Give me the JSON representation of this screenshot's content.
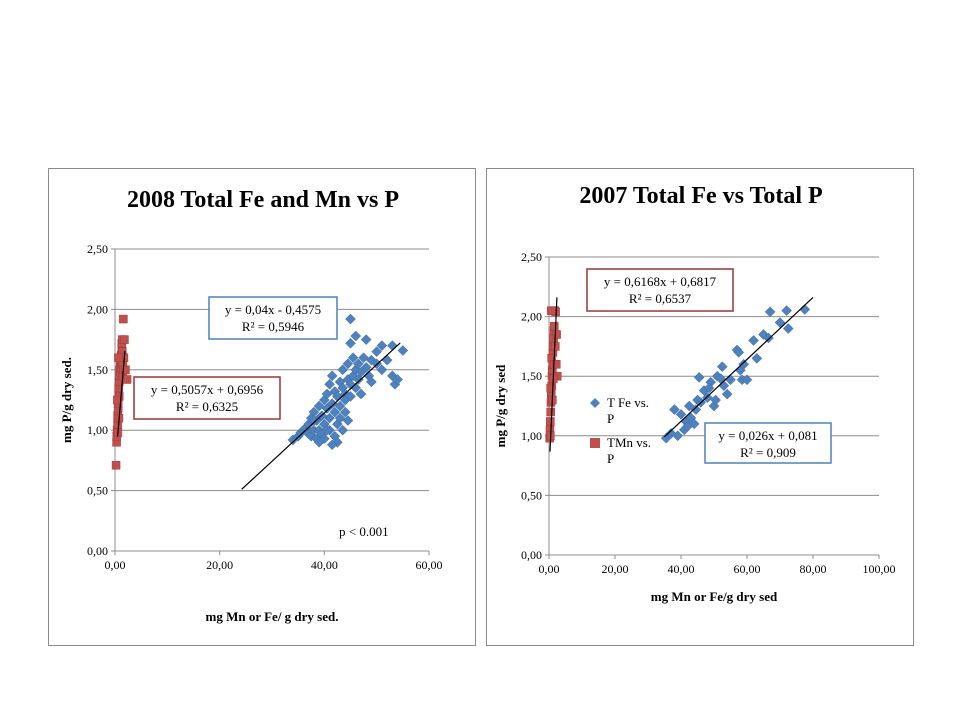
{
  "chart_data": [
    {
      "type": "scatter",
      "title": "2008 Total Fe and Mn vs P",
      "xlabel": "mg Mn or Fe/ g dry sed.",
      "ylabel": "mg P/g dry sed.",
      "xlim": [
        0,
        60
      ],
      "ylim": [
        0,
        2.5
      ],
      "xticks": [
        "0,00",
        "20,00",
        "40,00",
        "60,00"
      ],
      "yticks": [
        "0,00",
        "0,50",
        "1,00",
        "1,50",
        "2,00",
        "2,50"
      ],
      "grid": "horizontal",
      "legend": null,
      "series": [
        {
          "color": "#4f81bd",
          "marker": "diamond",
          "trend": {
            "slope": 0.04,
            "intercept": -0.4575,
            "x_range": [
              24.2,
              54.5
            ],
            "color": "#000000"
          },
          "points": [
            [
              34.0,
              0.92
            ],
            [
              35.0,
              0.95
            ],
            [
              35.5,
              0.98
            ],
            [
              36.0,
              1.0
            ],
            [
              36.5,
              1.02
            ],
            [
              37.0,
              0.97
            ],
            [
              37.0,
              1.05
            ],
            [
              37.5,
              1.1
            ],
            [
              37.5,
              0.95
            ],
            [
              38.0,
              1.0
            ],
            [
              38.0,
              1.15
            ],
            [
              38.5,
              0.93
            ],
            [
              38.5,
              1.08
            ],
            [
              39.0,
              1.2
            ],
            [
              39.0,
              1.0
            ],
            [
              39.5,
              1.12
            ],
            [
              39.5,
              0.97
            ],
            [
              40.0,
              1.25
            ],
            [
              40.0,
              1.05
            ],
            [
              40.0,
              0.93
            ],
            [
              40.5,
              1.18
            ],
            [
              40.5,
              1.3
            ],
            [
              41.0,
              1.1
            ],
            [
              41.0,
              1.0
            ],
            [
              41.0,
              1.38
            ],
            [
              41.5,
              1.22
            ],
            [
              41.5,
              1.45
            ],
            [
              42.0,
              1.15
            ],
            [
              42.0,
              1.32
            ],
            [
              42.0,
              0.95
            ],
            [
              42.5,
              1.28
            ],
            [
              42.5,
              1.05
            ],
            [
              43.0,
              1.4
            ],
            [
              43.0,
              1.2
            ],
            [
              43.0,
              1.1
            ],
            [
              43.5,
              1.35
            ],
            [
              43.5,
              1.5
            ],
            [
              44.0,
              1.3
            ],
            [
              44.0,
              1.15
            ],
            [
              44.0,
              1.25
            ],
            [
              44.5,
              1.42
            ],
            [
              44.5,
              1.55
            ],
            [
              45.0,
              1.38
            ],
            [
              45.0,
              1.28
            ],
            [
              45.0,
              1.72
            ],
            [
              45.0,
              1.92
            ],
            [
              45.5,
              1.45
            ],
            [
              45.5,
              1.6
            ],
            [
              46.0,
              1.35
            ],
            [
              46.0,
              1.5
            ],
            [
              46.0,
              1.78
            ],
            [
              46.5,
              1.42
            ],
            [
              46.5,
              1.55
            ],
            [
              47.0,
              1.48
            ],
            [
              47.0,
              1.3
            ],
            [
              47.5,
              1.6
            ],
            [
              48.0,
              1.52
            ],
            [
              48.0,
              1.75
            ],
            [
              48.5,
              1.45
            ],
            [
              49.0,
              1.58
            ],
            [
              49.0,
              1.4
            ],
            [
              50.0,
              1.55
            ],
            [
              50.0,
              1.65
            ],
            [
              51.0,
              1.5
            ],
            [
              51.0,
              1.7
            ],
            [
              52.0,
              1.58
            ],
            [
              53.0,
              1.45
            ],
            [
              53.0,
              1.7
            ],
            [
              53.5,
              1.38
            ],
            [
              54.0,
              1.42
            ],
            [
              55.0,
              1.66
            ],
            [
              43.5,
              1.0
            ],
            [
              42.5,
              0.9
            ],
            [
              44.5,
              1.08
            ],
            [
              39.0,
              0.9
            ],
            [
              41.5,
              0.88
            ],
            [
              40.5,
              1.0
            ],
            [
              38.0,
              1.08
            ]
          ]
        },
        {
          "color": "#c0504d",
          "marker": "square",
          "trend": {
            "slope": 0.5057,
            "intercept": 0.6956,
            "x_range": [
              0.5,
              1.9
            ],
            "color": "#000000"
          },
          "points": [
            [
              0.2,
              0.71
            ],
            [
              0.3,
              0.9
            ],
            [
              0.35,
              0.95
            ],
            [
              0.4,
              1.0
            ],
            [
              0.5,
              1.05
            ],
            [
              0.5,
              1.12
            ],
            [
              0.6,
              1.18
            ],
            [
              0.6,
              1.22
            ],
            [
              0.7,
              1.3
            ],
            [
              0.7,
              1.35
            ],
            [
              0.8,
              1.28
            ],
            [
              0.8,
              1.4
            ],
            [
              0.9,
              1.45
            ],
            [
              0.9,
              1.5
            ],
            [
              1.0,
              1.55
            ],
            [
              1.0,
              1.58
            ],
            [
              1.1,
              1.6
            ],
            [
              1.1,
              1.48
            ],
            [
              1.2,
              1.52
            ],
            [
              1.2,
              1.62
            ],
            [
              1.3,
              1.68
            ],
            [
              1.3,
              1.72
            ],
            [
              1.4,
              1.75
            ],
            [
              1.4,
              1.65
            ],
            [
              1.5,
              1.55
            ],
            [
              1.5,
              1.45
            ],
            [
              1.6,
              1.5
            ],
            [
              1.6,
              1.92
            ],
            [
              1.7,
              1.6
            ],
            [
              1.8,
              1.75
            ],
            [
              2.0,
              1.5
            ],
            [
              2.3,
              1.42
            ],
            [
              0.45,
              1.25
            ],
            [
              0.55,
              0.98
            ],
            [
              0.65,
              1.6
            ],
            [
              0.75,
              1.1
            ]
          ]
        }
      ],
      "annotations": [
        {
          "text": [
            "y = 0,04x - 0,4575",
            "R² = 0,5946"
          ],
          "border": "#4f81bd"
        },
        {
          "text": [
            "y = 0,5057x + 0,6956",
            "R² = 0,6325"
          ],
          "border": "#953735"
        },
        {
          "text": [
            "p < 0.001"
          ],
          "border": null
        }
      ]
    },
    {
      "type": "scatter",
      "title": "2007 Total Fe vs Total P",
      "xlabel": "mg Mn or Fe/g dry sed",
      "ylabel": "mg P/g dry sed",
      "xlim": [
        0,
        100
      ],
      "ylim": [
        0,
        2.5
      ],
      "xticks": [
        "0,00",
        "20,00",
        "40,00",
        "60,00",
        "80,00",
        "100,00"
      ],
      "yticks": [
        "0,00",
        "0,50",
        "1,00",
        "1,50",
        "2,00",
        "2,50"
      ],
      "grid": "horizontal",
      "legend": "center-left",
      "series": [
        {
          "name": "T Fe vs. P",
          "color": "#4f81bd",
          "marker": "diamond",
          "trend": {
            "slope": 0.026,
            "intercept": 0.081,
            "x_range": [
              35.0,
              80.0
            ],
            "color": "#000000"
          },
          "points": [
            [
              35.5,
              0.98
            ],
            [
              37.0,
              1.02
            ],
            [
              38.0,
              1.22
            ],
            [
              39.0,
              1.0
            ],
            [
              40.0,
              1.18
            ],
            [
              41.0,
              1.05
            ],
            [
              41.5,
              1.12
            ],
            [
              42.0,
              1.08
            ],
            [
              42.5,
              1.25
            ],
            [
              43.0,
              1.15
            ],
            [
              44.0,
              1.1
            ],
            [
              44.5,
              1.22
            ],
            [
              45.0,
              1.3
            ],
            [
              45.5,
              1.49
            ],
            [
              46.0,
              1.28
            ],
            [
              47.0,
              1.38
            ],
            [
              48.0,
              1.32
            ],
            [
              49.0,
              1.45
            ],
            [
              50.0,
              1.25
            ],
            [
              50.5,
              1.3
            ],
            [
              51.0,
              1.5
            ],
            [
              52.0,
              1.48
            ],
            [
              52.5,
              1.58
            ],
            [
              53.0,
              1.42
            ],
            [
              54.0,
              1.35
            ],
            [
              55.0,
              1.47
            ],
            [
              57.0,
              1.72
            ],
            [
              57.5,
              1.7
            ],
            [
              58.0,
              1.55
            ],
            [
              58.5,
              1.47
            ],
            [
              59.0,
              1.6
            ],
            [
              60.0,
              1.47
            ],
            [
              62.0,
              1.8
            ],
            [
              63.0,
              1.65
            ],
            [
              65.0,
              1.85
            ],
            [
              67.0,
              2.04
            ],
            [
              66.5,
              1.82
            ],
            [
              70.0,
              1.95
            ],
            [
              72.0,
              2.05
            ],
            [
              72.5,
              1.9
            ],
            [
              77.5,
              2.06
            ],
            [
              48.5,
              1.4
            ]
          ]
        },
        {
          "name": "TMn vs. P",
          "color": "#c0504d",
          "marker": "square",
          "trend": {
            "slope": 0.6168,
            "intercept": 0.6817,
            "x_range": [
              0.3,
              2.4
            ],
            "color": "#000000"
          },
          "points": [
            [
              0.2,
              0.98
            ],
            [
              0.3,
              1.05
            ],
            [
              0.4,
              1.12
            ],
            [
              0.5,
              1.2
            ],
            [
              0.6,
              1.28
            ],
            [
              0.7,
              1.35
            ],
            [
              0.8,
              1.42
            ],
            [
              0.9,
              1.5
            ],
            [
              1.0,
              1.55
            ],
            [
              1.1,
              1.6
            ],
            [
              1.2,
              1.7
            ],
            [
              1.3,
              1.75
            ],
            [
              1.4,
              1.82
            ],
            [
              1.5,
              1.88
            ],
            [
              1.6,
              1.92
            ],
            [
              1.7,
              2.05
            ],
            [
              2.0,
              2.04
            ],
            [
              2.3,
              1.85
            ],
            [
              2.5,
              1.5
            ],
            [
              0.5,
              1.4
            ],
            [
              0.8,
              1.65
            ],
            [
              1.0,
              1.3
            ],
            [
              1.3,
              1.48
            ],
            [
              1.6,
              1.6
            ],
            [
              1.9,
              1.75
            ],
            [
              2.2,
              1.6
            ],
            [
              0.4,
              1.0
            ],
            [
              0.7,
              2.05
            ]
          ]
        }
      ],
      "annotations": [
        {
          "text": [
            "y = 0,6168x + 0,6817",
            "R² = 0,6537"
          ],
          "border": "#953735"
        },
        {
          "text": [
            "y = 0,026x + 0,081",
            "R² = 0,909"
          ],
          "border": "#4f81bd"
        }
      ]
    }
  ]
}
